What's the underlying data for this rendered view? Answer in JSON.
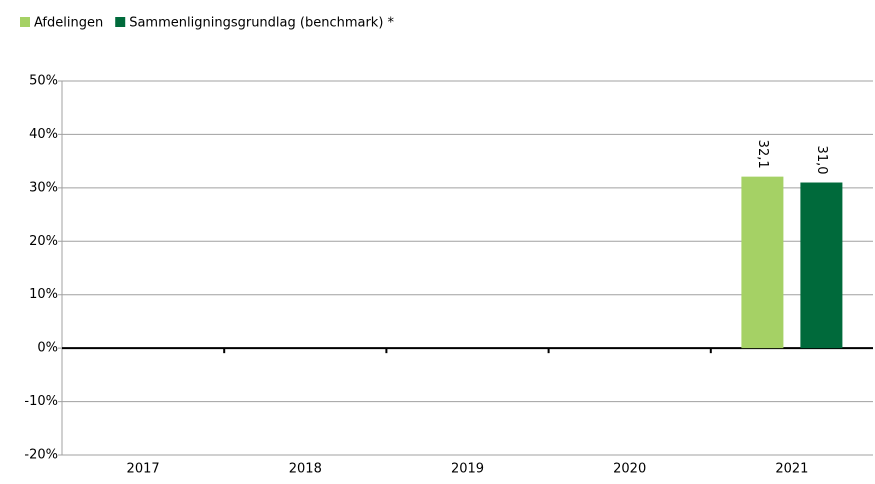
{
  "chart_data": {
    "type": "bar",
    "categories": [
      "2017",
      "2018",
      "2019",
      "2020",
      "2021"
    ],
    "series": [
      {
        "name": "Afdelingen",
        "color": "#a5d165",
        "values": [
          null,
          null,
          null,
          null,
          32.1
        ],
        "value_labels": [
          null,
          null,
          null,
          null,
          "32,1"
        ]
      },
      {
        "name": "Sammenligningsgrundlag (benchmark) *",
        "color": "#006a3b",
        "values": [
          null,
          null,
          null,
          null,
          31.0
        ],
        "value_labels": [
          null,
          null,
          null,
          null,
          "31,0"
        ]
      }
    ],
    "ylim": [
      -20,
      50
    ],
    "yticks": [
      {
        "value": -20,
        "label": "-20%"
      },
      {
        "value": -10,
        "label": "-10%"
      },
      {
        "value": 0,
        "label": "0%"
      },
      {
        "value": 10,
        "label": "10%"
      },
      {
        "value": 20,
        "label": "20%"
      },
      {
        "value": 30,
        "label": "30%"
      },
      {
        "value": 40,
        "label": "40%"
      },
      {
        "value": 50,
        "label": "50%"
      }
    ],
    "grid": true,
    "legend": "top-left"
  }
}
